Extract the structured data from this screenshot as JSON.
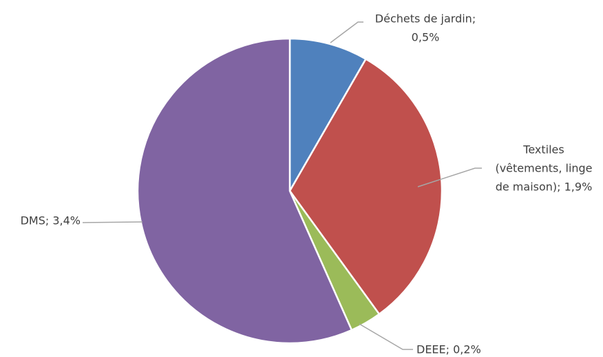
{
  "chart_data": {
    "type": "pie",
    "values": [
      0.5,
      1.9,
      0.2,
      3.4
    ],
    "value_labels": [
      [
        "Déchets de jardin;",
        "0,5%"
      ],
      [
        "Textiles",
        "(vêtements, linge",
        "de maison); 1,9%"
      ],
      [
        "DEEE; 0,2%"
      ],
      [
        "DMS; 3,4%"
      ]
    ],
    "colors": [
      "#4f81bd",
      "#c0504d",
      "#9bbb59",
      "#8064a2"
    ]
  }
}
